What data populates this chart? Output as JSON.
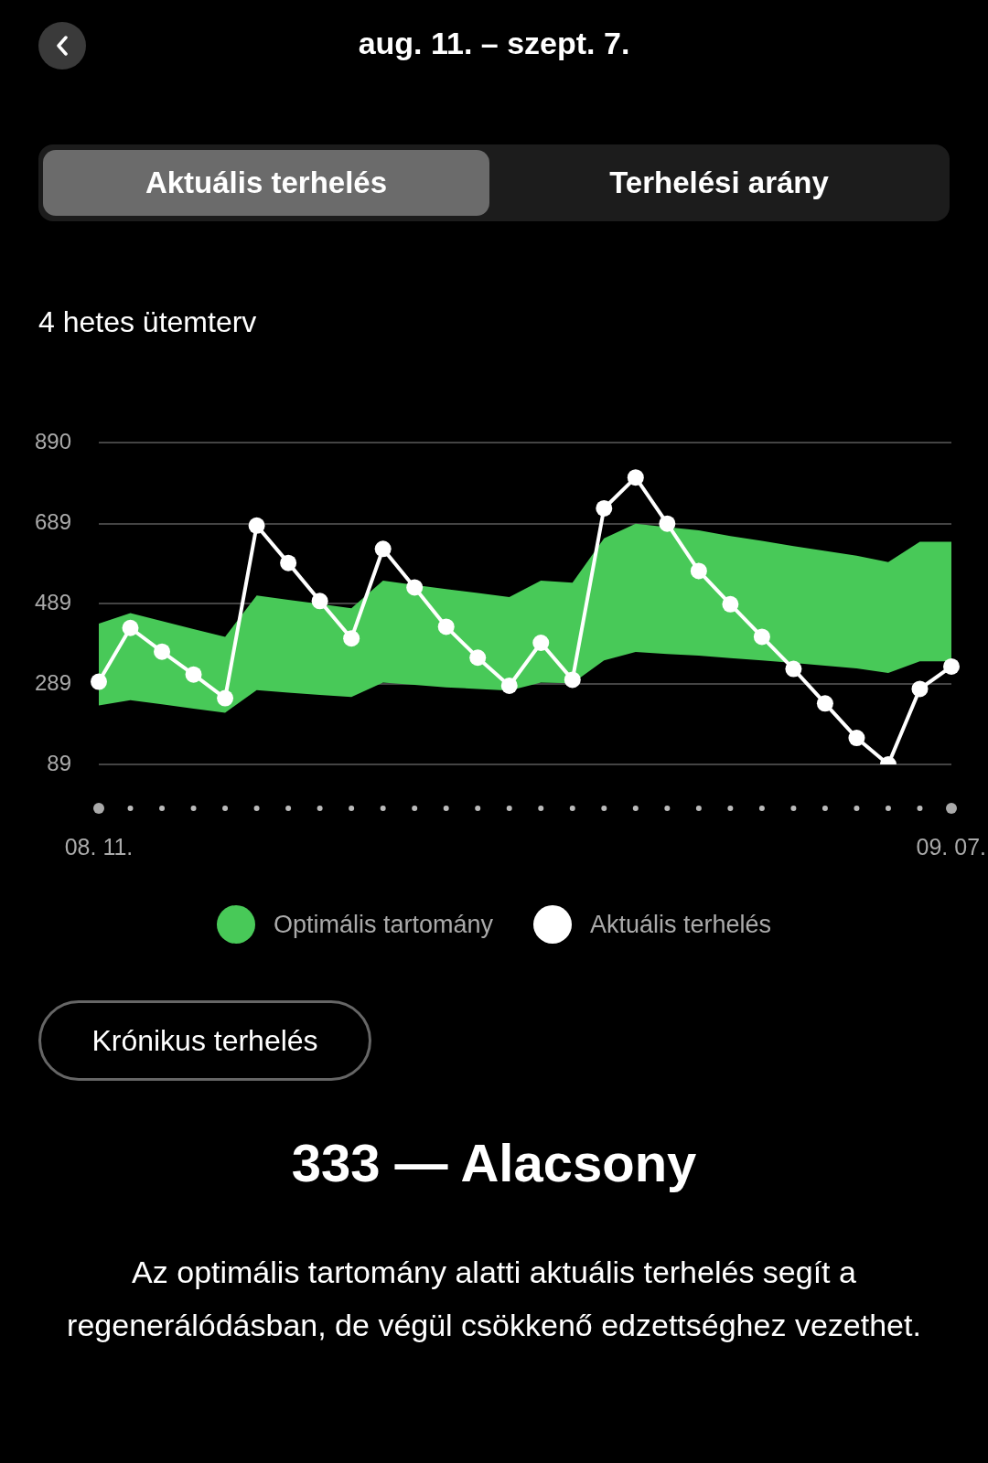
{
  "chart_data": {
    "type": "line",
    "title": "aug. 11. – szept. 7.",
    "subtitle": "4 hetes ütemterv",
    "categories": [
      "08. 11.",
      null,
      null,
      null,
      null,
      null,
      null,
      null,
      null,
      null,
      null,
      null,
      null,
      null,
      null,
      null,
      null,
      null,
      null,
      null,
      null,
      null,
      null,
      null,
      null,
      null,
      null,
      "09. 07."
    ],
    "series": [
      {
        "name": "Optimális tartomány",
        "type": "area",
        "color": "#48c958",
        "values": [
          null,
          null,
          null,
          null,
          null,
          null,
          null,
          null,
          null,
          null,
          null,
          null,
          null,
          null,
          null,
          null,
          null,
          null,
          null,
          null,
          null,
          null,
          null,
          null,
          null,
          null,
          null,
          null
        ],
        "upper": [
          440,
          466,
          446,
          426,
          407,
          510,
          499,
          489,
          478,
          547,
          536,
          526,
          516,
          506,
          547,
          542,
          652,
          689,
          680,
          672,
          658,
          646,
          633,
          621,
          609,
          593,
          644,
          644
        ],
        "lower": [
          236,
          249,
          239,
          228,
          218,
          274,
          268,
          262,
          257,
          293,
          287,
          281,
          277,
          273,
          293,
          291,
          348,
          369,
          364,
          360,
          354,
          348,
          342,
          335,
          328,
          317,
          346,
          346
        ]
      },
      {
        "name": "Aktuális terhelés",
        "marker": "circle",
        "color": "#ffffff",
        "values": [
          295,
          429,
          370,
          313,
          254,
          684,
          591,
          496,
          403,
          626,
          530,
          432,
          355,
          285,
          392,
          300,
          727,
          804,
          689,
          571,
          488,
          407,
          327,
          241,
          155,
          89,
          277,
          333
        ]
      }
    ],
    "ylim": [
      89,
      890
    ],
    "yticks": [
      89,
      289,
      489,
      689,
      890
    ],
    "grid": "y",
    "legend": "bottom",
    "line_style": "solid",
    "annotations": [
      "Aktuális terhelés",
      "Terhelési arány",
      "Krónikus terhelés",
      "333 — Alacsony",
      "Az optimális tartomány alatti aktuális terhelés segít a regenerálódásban, de végül csökkenő edzettséghez vezethet."
    ]
  }
}
